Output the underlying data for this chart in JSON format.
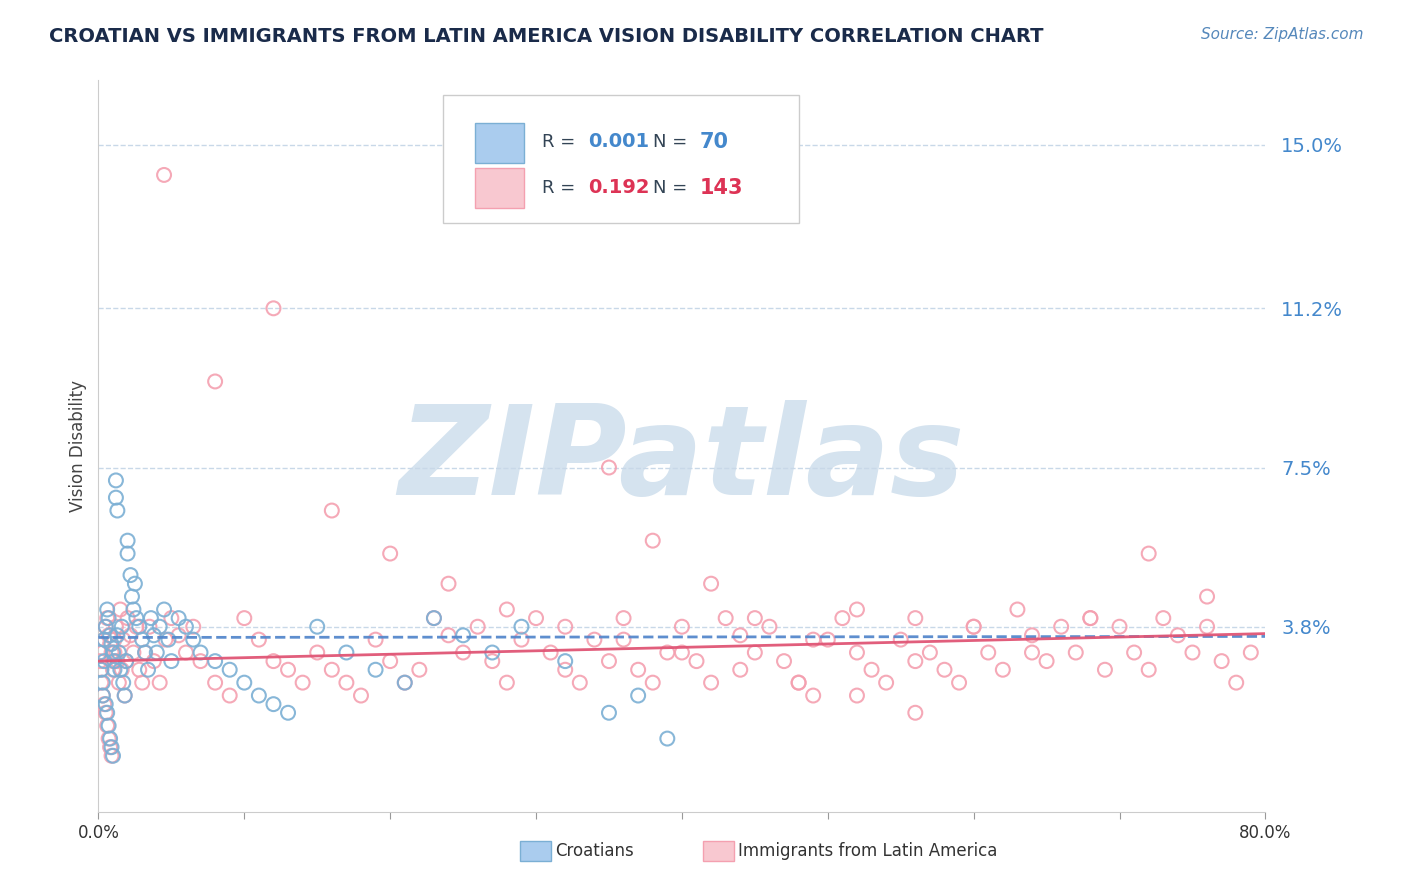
{
  "title": "CROATIAN VS IMMIGRANTS FROM LATIN AMERICA VISION DISABILITY CORRELATION CHART",
  "source": "Source: ZipAtlas.com",
  "ylabel": "Vision Disability",
  "xlim": [
    0.0,
    0.8
  ],
  "ylim": [
    -0.005,
    0.165
  ],
  "yticks": [
    0.038,
    0.075,
    0.112,
    0.15
  ],
  "ytick_labels": [
    "3.8%",
    "7.5%",
    "11.2%",
    "15.0%"
  ],
  "xticks": [
    0.0,
    0.1,
    0.2,
    0.3,
    0.4,
    0.5,
    0.6,
    0.7,
    0.8
  ],
  "xtick_labels": [
    "0.0%",
    "",
    "",
    "",
    "",
    "",
    "",
    "",
    "80.0%"
  ],
  "blue_R": "0.001",
  "blue_N": "70",
  "pink_R": "0.192",
  "pink_N": "143",
  "blue_color": "#7BAFD4",
  "pink_color": "#F4A0B0",
  "blue_line_color": "#5588CC",
  "pink_line_color": "#E05575",
  "grid_color": "#C8D8E8",
  "background_color": "#FFFFFF",
  "watermark": "ZIPatlas",
  "watermark_color": "#D5E3EF",
  "title_color": "#1A2B4A",
  "source_color": "#5588BB",
  "title_fontsize": 14,
  "blue_x": [
    0.001,
    0.002,
    0.003,
    0.003,
    0.004,
    0.004,
    0.005,
    0.005,
    0.006,
    0.006,
    0.007,
    0.007,
    0.008,
    0.008,
    0.009,
    0.009,
    0.01,
    0.01,
    0.011,
    0.011,
    0.012,
    0.012,
    0.013,
    0.013,
    0.014,
    0.015,
    0.016,
    0.017,
    0.018,
    0.019,
    0.02,
    0.02,
    0.022,
    0.023,
    0.024,
    0.025,
    0.026,
    0.028,
    0.03,
    0.032,
    0.034,
    0.036,
    0.038,
    0.04,
    0.042,
    0.045,
    0.048,
    0.05,
    0.055,
    0.06,
    0.065,
    0.07,
    0.08,
    0.09,
    0.1,
    0.11,
    0.12,
    0.13,
    0.15,
    0.17,
    0.19,
    0.21,
    0.23,
    0.25,
    0.27,
    0.29,
    0.32,
    0.35,
    0.37,
    0.39
  ],
  "blue_y": [
    0.032,
    0.028,
    0.025,
    0.022,
    0.035,
    0.03,
    0.038,
    0.02,
    0.042,
    0.018,
    0.04,
    0.015,
    0.036,
    0.012,
    0.034,
    0.01,
    0.032,
    0.008,
    0.03,
    0.028,
    0.072,
    0.068,
    0.065,
    0.036,
    0.032,
    0.028,
    0.038,
    0.025,
    0.022,
    0.03,
    0.055,
    0.058,
    0.05,
    0.045,
    0.042,
    0.048,
    0.04,
    0.038,
    0.035,
    0.032,
    0.028,
    0.04,
    0.036,
    0.032,
    0.038,
    0.042,
    0.035,
    0.03,
    0.04,
    0.038,
    0.035,
    0.032,
    0.03,
    0.028,
    0.025,
    0.022,
    0.02,
    0.018,
    0.038,
    0.032,
    0.028,
    0.025,
    0.04,
    0.036,
    0.032,
    0.038,
    0.03,
    0.018,
    0.022,
    0.012
  ],
  "pink_x": [
    0.001,
    0.002,
    0.002,
    0.003,
    0.003,
    0.004,
    0.004,
    0.005,
    0.005,
    0.006,
    0.006,
    0.007,
    0.007,
    0.008,
    0.008,
    0.009,
    0.009,
    0.01,
    0.01,
    0.011,
    0.011,
    0.012,
    0.013,
    0.014,
    0.015,
    0.016,
    0.017,
    0.018,
    0.019,
    0.02,
    0.022,
    0.024,
    0.026,
    0.028,
    0.03,
    0.032,
    0.035,
    0.038,
    0.042,
    0.046,
    0.05,
    0.055,
    0.06,
    0.065,
    0.07,
    0.08,
    0.09,
    0.1,
    0.11,
    0.12,
    0.13,
    0.14,
    0.15,
    0.16,
    0.17,
    0.18,
    0.19,
    0.2,
    0.21,
    0.22,
    0.23,
    0.24,
    0.25,
    0.26,
    0.27,
    0.28,
    0.29,
    0.3,
    0.31,
    0.32,
    0.33,
    0.34,
    0.35,
    0.36,
    0.37,
    0.38,
    0.39,
    0.4,
    0.41,
    0.42,
    0.43,
    0.44,
    0.45,
    0.46,
    0.47,
    0.48,
    0.49,
    0.5,
    0.51,
    0.52,
    0.53,
    0.54,
    0.55,
    0.56,
    0.57,
    0.58,
    0.59,
    0.6,
    0.61,
    0.62,
    0.63,
    0.64,
    0.65,
    0.66,
    0.67,
    0.68,
    0.69,
    0.7,
    0.71,
    0.72,
    0.73,
    0.74,
    0.75,
    0.76,
    0.77,
    0.78,
    0.79,
    0.35,
    0.38,
    0.42,
    0.45,
    0.49,
    0.52,
    0.56,
    0.6,
    0.64,
    0.68,
    0.72,
    0.76,
    0.045,
    0.08,
    0.12,
    0.16,
    0.2,
    0.24,
    0.28,
    0.32,
    0.36,
    0.4,
    0.44,
    0.48,
    0.52,
    0.56
  ],
  "pink_y": [
    0.03,
    0.028,
    0.025,
    0.032,
    0.022,
    0.035,
    0.02,
    0.038,
    0.018,
    0.04,
    0.015,
    0.036,
    0.012,
    0.034,
    0.01,
    0.032,
    0.008,
    0.03,
    0.028,
    0.035,
    0.032,
    0.038,
    0.03,
    0.025,
    0.042,
    0.028,
    0.035,
    0.022,
    0.03,
    0.04,
    0.036,
    0.032,
    0.038,
    0.028,
    0.025,
    0.032,
    0.038,
    0.03,
    0.025,
    0.035,
    0.04,
    0.036,
    0.032,
    0.038,
    0.03,
    0.025,
    0.022,
    0.04,
    0.035,
    0.03,
    0.028,
    0.025,
    0.032,
    0.028,
    0.025,
    0.022,
    0.035,
    0.03,
    0.025,
    0.028,
    0.04,
    0.036,
    0.032,
    0.038,
    0.03,
    0.025,
    0.035,
    0.04,
    0.032,
    0.028,
    0.025,
    0.035,
    0.03,
    0.04,
    0.028,
    0.025,
    0.032,
    0.038,
    0.03,
    0.025,
    0.04,
    0.036,
    0.032,
    0.038,
    0.03,
    0.025,
    0.022,
    0.035,
    0.04,
    0.032,
    0.028,
    0.025,
    0.035,
    0.04,
    0.032,
    0.028,
    0.025,
    0.038,
    0.032,
    0.028,
    0.042,
    0.036,
    0.03,
    0.038,
    0.032,
    0.04,
    0.028,
    0.038,
    0.032,
    0.028,
    0.04,
    0.036,
    0.032,
    0.038,
    0.03,
    0.025,
    0.032,
    0.075,
    0.058,
    0.048,
    0.04,
    0.035,
    0.042,
    0.03,
    0.038,
    0.032,
    0.04,
    0.055,
    0.045,
    0.143,
    0.095,
    0.112,
    0.065,
    0.055,
    0.048,
    0.042,
    0.038,
    0.035,
    0.032,
    0.028,
    0.025,
    0.022,
    0.018
  ]
}
